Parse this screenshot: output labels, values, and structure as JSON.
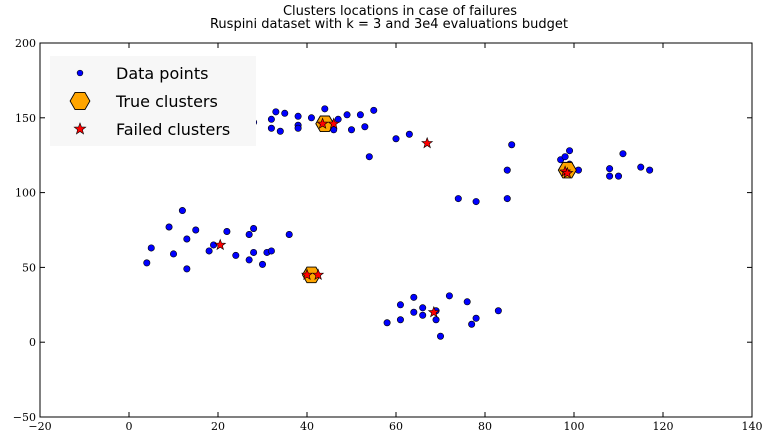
{
  "chart_data": {
    "type": "scatter",
    "title": "Clusters locations in case of failures",
    "subtitle": "Ruspini dataset with k = 3 and 3e4 evaluations budget",
    "xlabel": "",
    "ylabel": "",
    "xlim": [
      -20,
      140
    ],
    "ylim": [
      -50,
      200
    ],
    "xticks": [
      -20,
      0,
      20,
      40,
      60,
      80,
      100,
      120,
      140
    ],
    "yticks": [
      -50,
      0,
      50,
      100,
      150,
      200
    ],
    "grid": false,
    "legend_position": "top-left",
    "series": [
      {
        "name": "Data points",
        "marker": "circle",
        "color": "#0000ff",
        "points": [
          [
            4,
            53
          ],
          [
            5,
            63
          ],
          [
            10,
            59
          ],
          [
            9,
            77
          ],
          [
            13,
            49
          ],
          [
            13,
            69
          ],
          [
            12,
            88
          ],
          [
            15,
            75
          ],
          [
            18,
            61
          ],
          [
            19,
            65
          ],
          [
            22,
            74
          ],
          [
            27,
            72
          ],
          [
            28,
            76
          ],
          [
            24,
            58
          ],
          [
            27,
            55
          ],
          [
            28,
            60
          ],
          [
            30,
            52
          ],
          [
            31,
            60
          ],
          [
            32,
            61
          ],
          [
            36,
            72
          ],
          [
            28,
            147
          ],
          [
            32,
            149
          ],
          [
            35,
            153
          ],
          [
            33,
            154
          ],
          [
            38,
            151
          ],
          [
            41,
            150
          ],
          [
            38,
            145
          ],
          [
            38,
            143
          ],
          [
            32,
            143
          ],
          [
            34,
            141
          ],
          [
            44,
            156
          ],
          [
            44,
            149
          ],
          [
            44,
            143
          ],
          [
            46,
            142
          ],
          [
            47,
            149
          ],
          [
            49,
            152
          ],
          [
            50,
            142
          ],
          [
            53,
            144
          ],
          [
            52,
            152
          ],
          [
            55,
            155
          ],
          [
            54,
            124
          ],
          [
            60,
            136
          ],
          [
            63,
            139
          ],
          [
            86,
            132
          ],
          [
            85,
            115
          ],
          [
            85,
            96
          ],
          [
            78,
            94
          ],
          [
            74,
            96
          ],
          [
            97,
            122
          ],
          [
            98,
            116
          ],
          [
            98,
            124
          ],
          [
            99,
            119
          ],
          [
            99,
            128
          ],
          [
            101,
            115
          ],
          [
            108,
            111
          ],
          [
            110,
            111
          ],
          [
            108,
            116
          ],
          [
            111,
            126
          ],
          [
            115,
            117
          ],
          [
            117,
            115
          ],
          [
            70,
            4
          ],
          [
            77,
            12
          ],
          [
            83,
            21
          ],
          [
            61,
            15
          ],
          [
            69,
            15
          ],
          [
            78,
            16
          ],
          [
            66,
            18
          ],
          [
            58,
            13
          ],
          [
            64,
            20
          ],
          [
            69,
            21
          ],
          [
            66,
            23
          ],
          [
            61,
            25
          ],
          [
            76,
            27
          ],
          [
            72,
            31
          ],
          [
            64,
            30
          ]
        ]
      },
      {
        "name": "True clusters",
        "marker": "hexagon",
        "color": "#ffa500",
        "points": [
          [
            44,
            146
          ],
          [
            98.5,
            115
          ],
          [
            41,
            45
          ]
        ]
      },
      {
        "name": "Failed clusters",
        "marker": "star",
        "color": "#ff0000",
        "points": [
          [
            20.5,
            65
          ],
          [
            43.5,
            146
          ],
          [
            46,
            146
          ],
          [
            67,
            133
          ],
          [
            98,
            114
          ],
          [
            98.5,
            113
          ],
          [
            40,
            45
          ],
          [
            42.5,
            45
          ],
          [
            68.5,
            20
          ]
        ]
      }
    ]
  }
}
